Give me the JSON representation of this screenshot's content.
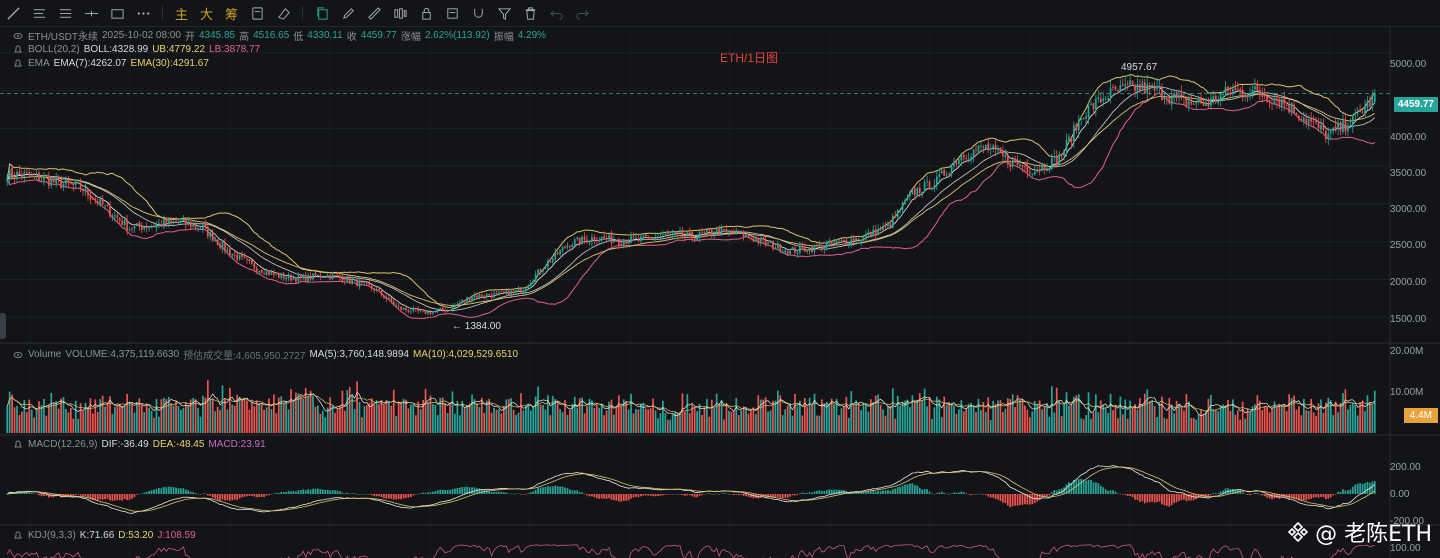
{
  "toolbar": {
    "tools": [
      "line-tool",
      "horizontal-lines-tool",
      "parallel-channel-tool",
      "horizontal-line-tool",
      "rectangle-tool",
      "more-tool"
    ],
    "text_tools": [
      "主",
      "大",
      "筹"
    ],
    "right_tools": [
      "copy-icon",
      "pencil-icon",
      "ruler-icon",
      "bars-icon",
      "lock-icon",
      "note-icon",
      "magnet-icon",
      "filter-icon",
      "trash-icon",
      "undo-icon",
      "redo-icon"
    ]
  },
  "legend": {
    "symbol": "ETH/USDT永续",
    "time": "2025-10-02 08:00",
    "open_label": "开",
    "open": "4345.85",
    "high_label": "高",
    "high": "4516.65",
    "low_label": "低",
    "low": "4330.11",
    "close_label": "收",
    "close": "4459.77",
    "change_label": "涨幅",
    "change": "2.62%(113.92)",
    "amp_label": "振幅",
    "amp": "4.29%",
    "boll_name": "BOLL(20,2)",
    "boll": "BOLL:4328.99",
    "ub": "UB:4779.22",
    "lb": "LB:3878.77",
    "ema_name": "EMA",
    "ema7": "EMA(7):4262.07",
    "ema30": "EMA(30):4291.67",
    "vol_name": "Volume",
    "vol": "VOLUME:4,375,119.6630",
    "vol_est": "预估成交量:4,605,950.2727",
    "vol_ma5": "MA(5):3,760,148.9894",
    "vol_ma10": "MA(10):4,029,529.6510",
    "macd_name": "MACD(12,26,9)",
    "dif": "DIF:-36.49",
    "dea": "DEA:-48.45",
    "macd": "MACD:23.91",
    "kdj_name": "KDJ(9,3,3)",
    "k": "K:71.66",
    "d": "D:53.20",
    "j": "J:108.59"
  },
  "title": "ETH/1日图",
  "price_axis": [
    "5000.00",
    "4500.00",
    "4000.00",
    "3500.00",
    "3000.00",
    "2500.00",
    "2000.00",
    "1500.00"
  ],
  "volume_axis": [
    "20.00M",
    "10.00M"
  ],
  "macd_axis": [
    "200.00",
    "0.00",
    "-200.00"
  ],
  "kdj_axis": [
    "100.00"
  ],
  "last_price": "4459.77",
  "last_volume": "4.4M",
  "high_mark": "4957.67",
  "low_mark": "1384.00",
  "watermark": "@ 老陈ETH",
  "colors": {
    "up": "#26a69a",
    "down": "#ef5350",
    "boll_band": "#d8c36a",
    "boll_lb": "#e06089",
    "ema": "#e8e8e8",
    "bg": "#131417"
  },
  "chart_data": {
    "type": "candlestick",
    "title": "ETH/1日图",
    "ylim": [
      1200,
      5300
    ],
    "series_names": [
      "BOLL(20,2)",
      "EMA(7)",
      "EMA(30)",
      "VOLUME",
      "MACD(12,26,9)",
      "KDJ(9,3,3)"
    ],
    "anchor_points": [
      [
        0,
        3400
      ],
      [
        10,
        3370
      ],
      [
        20,
        3280
      ],
      [
        30,
        3220
      ],
      [
        40,
        2950
      ],
      [
        50,
        2680
      ],
      [
        60,
        2720
      ],
      [
        70,
        2760
      ],
      [
        80,
        2680
      ],
      [
        90,
        2380
      ],
      [
        100,
        2180
      ],
      [
        110,
        2050
      ],
      [
        120,
        2010
      ],
      [
        130,
        2060
      ],
      [
        140,
        1990
      ],
      [
        150,
        1880
      ],
      [
        160,
        1620
      ],
      [
        170,
        1560
      ],
      [
        180,
        1600
      ],
      [
        190,
        1780
      ],
      [
        200,
        1800
      ],
      [
        210,
        1850
      ],
      [
        220,
        2200
      ],
      [
        230,
        2480
      ],
      [
        240,
        2560
      ],
      [
        250,
        2520
      ],
      [
        260,
        2530
      ],
      [
        270,
        2590
      ],
      [
        280,
        2560
      ],
      [
        290,
        2640
      ],
      [
        300,
        2600
      ],
      [
        310,
        2480
      ],
      [
        320,
        2380
      ],
      [
        330,
        2420
      ],
      [
        340,
        2490
      ],
      [
        350,
        2560
      ],
      [
        360,
        2700
      ],
      [
        370,
        3150
      ],
      [
        380,
        3300
      ],
      [
        390,
        3650
      ],
      [
        400,
        3750
      ],
      [
        410,
        3560
      ],
      [
        420,
        3450
      ],
      [
        430,
        3600
      ],
      [
        440,
        4200
      ],
      [
        450,
        4450
      ],
      [
        460,
        4550
      ],
      [
        470,
        4500
      ],
      [
        480,
        4350
      ],
      [
        490,
        4320
      ],
      [
        500,
        4500
      ],
      [
        510,
        4480
      ],
      [
        520,
        4380
      ],
      [
        530,
        4150
      ],
      [
        540,
        3900
      ],
      [
        550,
        4100
      ],
      [
        560,
        4459.77
      ]
    ],
    "last_candle": {
      "open": 4345.85,
      "high": 4516.65,
      "low": 4330.11,
      "close": 4459.77
    }
  }
}
